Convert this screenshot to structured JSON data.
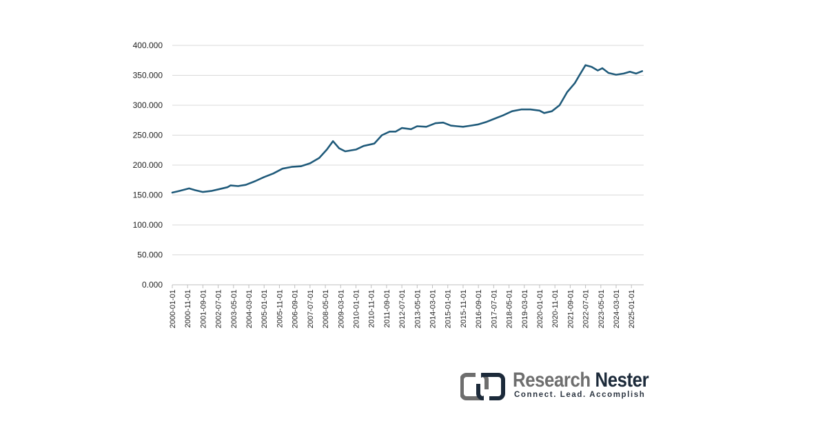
{
  "chart_data": {
    "type": "line",
    "title": "",
    "xlabel": "",
    "ylabel": "",
    "ylim": [
      0,
      400000
    ],
    "y_ticks": [
      "0.000",
      "50.000",
      "100.000",
      "150.000",
      "200.000",
      "250.000",
      "300.000",
      "350.000",
      "400.000"
    ],
    "x_ticks": [
      "2000-01-01",
      "2000-11-01",
      "2001-09-01",
      "2002-07-01",
      "2003-05-01",
      "2004-03-01",
      "2005-01-01",
      "2005-11-01",
      "2006-09-01",
      "2007-07-01",
      "2008-05-01",
      "2009-03-01",
      "2010-01-01",
      "2010-11-01",
      "2011-09-01",
      "2012-07-01",
      "2013-05-01",
      "2014-03-01",
      "2015-01-01",
      "2015-11-01",
      "2016-09-01",
      "2017-07-01",
      "2018-05-01",
      "2019-03-01",
      "2020-01-01",
      "2020-11-01",
      "2021-09-01",
      "2022-07-01",
      "2023-05-01",
      "2024-03-01",
      "2025-01-01"
    ],
    "grid": true,
    "line_color": "#1f5a7a",
    "series": [
      {
        "points": [
          [
            "2000-01",
            154000
          ],
          [
            "2000-06",
            157000
          ],
          [
            "2000-12",
            161000
          ],
          [
            "2001-04",
            158000
          ],
          [
            "2001-09",
            155000
          ],
          [
            "2002-03",
            157000
          ],
          [
            "2002-08",
            160000
          ],
          [
            "2003-01",
            163000
          ],
          [
            "2003-03",
            166000
          ],
          [
            "2003-08",
            165000
          ],
          [
            "2004-01",
            167000
          ],
          [
            "2004-07",
            173000
          ],
          [
            "2005-01",
            180000
          ],
          [
            "2005-07",
            186000
          ],
          [
            "2006-01",
            194000
          ],
          [
            "2006-07",
            197000
          ],
          [
            "2007-01",
            198000
          ],
          [
            "2007-07",
            203000
          ],
          [
            "2008-01",
            212000
          ],
          [
            "2008-06",
            226000
          ],
          [
            "2008-10",
            240000
          ],
          [
            "2009-02",
            228000
          ],
          [
            "2009-06",
            223000
          ],
          [
            "2010-01",
            226000
          ],
          [
            "2010-06",
            232000
          ],
          [
            "2011-01",
            236000
          ],
          [
            "2011-06",
            250000
          ],
          [
            "2011-11",
            256000
          ],
          [
            "2012-03",
            256000
          ],
          [
            "2012-07",
            262000
          ],
          [
            "2013-01",
            260000
          ],
          [
            "2013-05",
            265000
          ],
          [
            "2013-11",
            264000
          ],
          [
            "2014-05",
            270000
          ],
          [
            "2014-10",
            271000
          ],
          [
            "2015-03",
            266000
          ],
          [
            "2015-07",
            265000
          ],
          [
            "2015-11",
            264000
          ],
          [
            "2016-04",
            266000
          ],
          [
            "2016-09",
            268000
          ],
          [
            "2017-02",
            272000
          ],
          [
            "2017-07",
            277000
          ],
          [
            "2018-01",
            283000
          ],
          [
            "2018-07",
            290000
          ],
          [
            "2019-01",
            293000
          ],
          [
            "2019-07",
            293000
          ],
          [
            "2020-01",
            291000
          ],
          [
            "2020-04",
            287000
          ],
          [
            "2020-09",
            290000
          ],
          [
            "2021-02",
            300000
          ],
          [
            "2021-07",
            322000
          ],
          [
            "2021-12",
            337000
          ],
          [
            "2022-03",
            350000
          ],
          [
            "2022-07",
            367000
          ],
          [
            "2022-11",
            364000
          ],
          [
            "2023-03",
            358000
          ],
          [
            "2023-06",
            362000
          ],
          [
            "2023-10",
            354000
          ],
          [
            "2024-03",
            351000
          ],
          [
            "2024-08",
            353000
          ],
          [
            "2024-12",
            356000
          ],
          [
            "2025-04",
            353000
          ],
          [
            "2025-08",
            357000
          ]
        ]
      }
    ]
  },
  "logo": {
    "word1": "Research",
    "word2": "Nester",
    "tagline": "Connect. Lead. Accomplish"
  }
}
